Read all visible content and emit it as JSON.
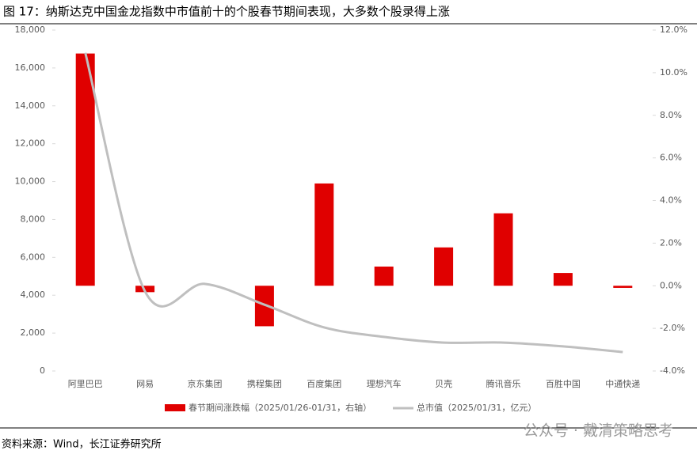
{
  "chart_data": {
    "type": "bar_line",
    "title": "图 17：纳斯达克中国金龙指数中市值前十的个股春节期间表现，大多数个股录得上涨",
    "categories": [
      "阿里巴巴",
      "网易",
      "京东集团",
      "携程集团",
      "百度集团",
      "理想汽车",
      "贝壳",
      "腾讯音乐",
      "百胜中国",
      "中通快递"
    ],
    "series": [
      {
        "name": "春节期间涨跌幅（2025/01/26-01/31，右轴）",
        "color": "#e00000",
        "type": "bar",
        "axis": "y2",
        "values": [
          10.9,
          -0.3,
          0,
          -1.9,
          4.8,
          0.9,
          1.8,
          3.4,
          0.6,
          -0.1
        ]
      },
      {
        "name": "总市值（2025/01/31，亿元）",
        "color": "#bfbfbf",
        "type": "line",
        "values": [
          16800,
          4200,
          4600,
          3500,
          2300,
          1800,
          1500,
          1500,
          1300,
          1000
        ]
      }
    ],
    "ylim": [
      0,
      18000
    ],
    "yticks": [
      0,
      {
        "value": 2000,
        "label": "2,000"
      },
      {
        "value": 4000,
        "label": "4,000"
      },
      {
        "value": 6000,
        "label": "6,000"
      },
      {
        "value": 8000,
        "label": "8,000"
      },
      {
        "value": 10000,
        "label": "10,000"
      },
      {
        "value": 12000,
        "label": "12,000"
      },
      {
        "value": 14000,
        "label": "14,000"
      },
      {
        "value": 16000,
        "label": "16,000"
      },
      {
        "value": 18000,
        "label": "18,000"
      }
    ],
    "y2lim": [
      -4,
      12
    ],
    "y2ticks": [
      {
        "value": -4,
        "label": "-4.0%"
      },
      {
        "value": -2,
        "label": "-2.0%"
      },
      {
        "value": 0,
        "label": "0.0%"
      },
      {
        "value": 2,
        "label": "2.0%"
      },
      {
        "value": 4,
        "label": "4.0%"
      },
      {
        "value": 6,
        "label": "6.0%"
      },
      {
        "value": 8,
        "label": "8.0%"
      },
      {
        "value": 10,
        "label": "10.0%"
      },
      {
        "value": 12,
        "label": "12.0%"
      }
    ],
    "source": "资料来源：Wind，长江证券研究所",
    "watermark": "公众号 · 戴清策略思考"
  }
}
